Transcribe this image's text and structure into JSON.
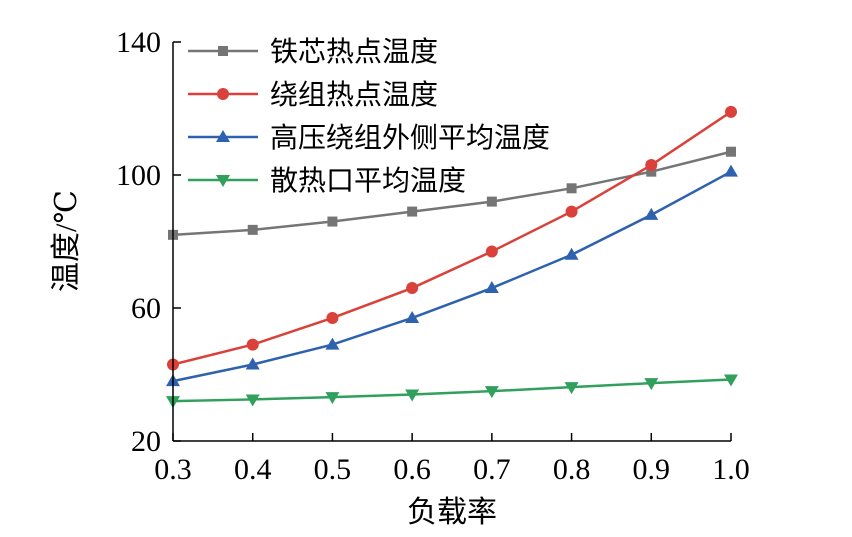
{
  "chart_data": {
    "type": "line",
    "title": "",
    "xlabel": "负载率",
    "ylabel": "温度/℃",
    "x": [
      0.3,
      0.4,
      0.5,
      0.6,
      0.7,
      0.8,
      0.9,
      1.0
    ],
    "x_tick_labels": [
      "0.3",
      "0.4",
      "0.5",
      "0.6",
      "0.7",
      "0.8",
      "0.9",
      "1.0"
    ],
    "xlim": [
      0.3,
      1.0
    ],
    "ylim": [
      20,
      140
    ],
    "y_ticks": [
      20,
      60,
      100,
      140
    ],
    "y_tick_labels": [
      "20",
      "60",
      "100",
      "140"
    ],
    "grid": false,
    "legend_position": "top-left",
    "series": [
      {
        "name": "铁芯热点温度",
        "color": "#757575",
        "marker": "square",
        "values": [
          82,
          83.5,
          86,
          89,
          92,
          96,
          101,
          107
        ]
      },
      {
        "name": "绕组热点温度",
        "color": "#d9413a",
        "marker": "circle",
        "values": [
          43,
          49,
          57,
          66,
          77,
          89,
          103,
          119
        ]
      },
      {
        "name": "高压绕组外侧平均温度",
        "color": "#2e62ae",
        "marker": "triangle-up",
        "values": [
          38,
          43,
          49,
          57,
          66,
          76,
          88,
          101
        ]
      },
      {
        "name": "散热口平均温度",
        "color": "#31a05c",
        "marker": "triangle-down",
        "values": [
          32,
          32.5,
          33.2,
          34,
          35,
          36.2,
          37.4,
          38.5
        ]
      }
    ]
  }
}
